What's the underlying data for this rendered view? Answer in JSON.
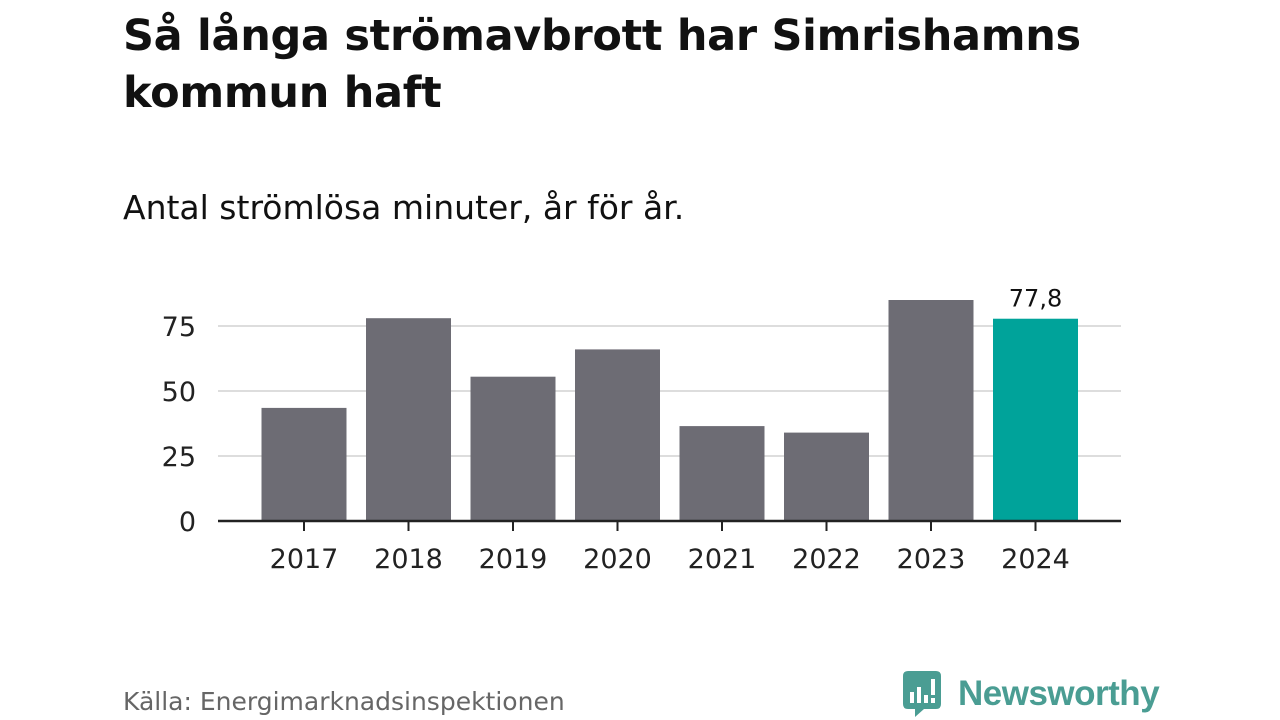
{
  "header": {
    "title": "Så långa strömavbrott har Simrishamns kommun haft",
    "subtitle": "Antal strömlösa minuter, år för år."
  },
  "footer": {
    "source": "Källa: Energimarknadsinspektionen",
    "brand": "Newsworthy"
  },
  "colors": {
    "bar": "#6d6c74",
    "highlight": "#00a39a",
    "gridline": "#dddddd",
    "axis": "#222222",
    "brand": "#4a9d93"
  },
  "chart_data": {
    "type": "bar",
    "title": "Så långa strömavbrott har Simrishamns kommun haft",
    "subtitle": "Antal strömlösa minuter, år för år.",
    "xlabel": "",
    "ylabel": "",
    "categories": [
      "2017",
      "2018",
      "2019",
      "2020",
      "2021",
      "2022",
      "2023",
      "2024"
    ],
    "values": [
      43.5,
      78,
      55.5,
      66,
      36.5,
      34,
      85,
      77.8
    ],
    "highlight_index": 7,
    "data_labels": [
      {
        "index": 7,
        "text": "77,8"
      }
    ],
    "yticks": [
      0,
      25,
      50,
      75
    ],
    "ylim": [
      0,
      90
    ],
    "grid": true,
    "legend": "none"
  }
}
